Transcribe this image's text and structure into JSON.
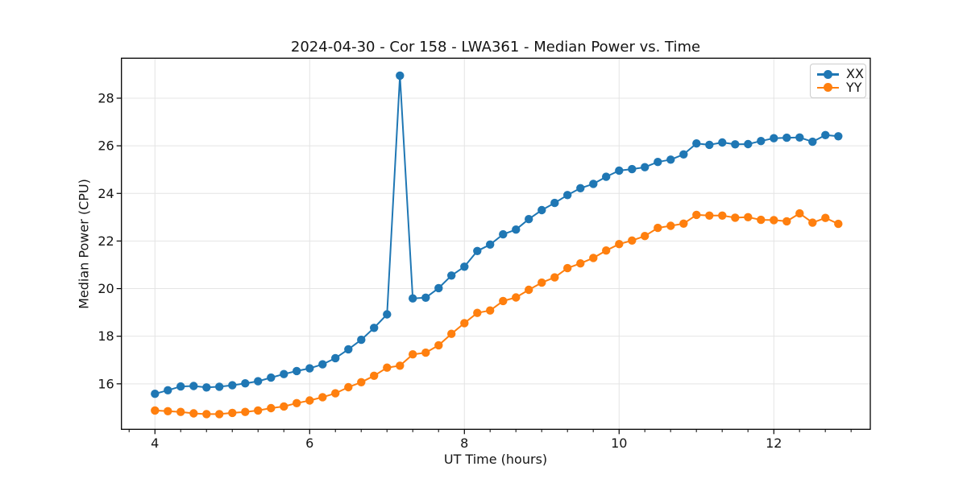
{
  "chart_data": {
    "type": "line",
    "title": "2024-04-30 - Cor 158 - LWA361 - Median Power vs. Time",
    "xlabel": "UT Time (hours)",
    "ylabel": "Median Power (CPU)",
    "xlim": [
      3.567,
      13.247
    ],
    "ylim": [
      14.09,
      29.68
    ],
    "xticks": [
      4,
      6,
      8,
      10,
      12
    ],
    "yticks": [
      16,
      18,
      20,
      22,
      24,
      26,
      28
    ],
    "x_minor_step": 0.3333,
    "grid": true,
    "grid_color": "#e4e4e4",
    "legend_position": "upper right",
    "x": [
      4,
      4.167,
      4.333,
      4.5,
      4.667,
      4.833,
      5,
      5.167,
      5.333,
      5.5,
      5.667,
      5.833,
      6,
      6.167,
      6.333,
      6.5,
      6.667,
      6.833,
      7,
      7.167,
      7.333,
      7.5,
      7.667,
      7.833,
      8,
      8.167,
      8.333,
      8.5,
      8.667,
      8.833,
      9,
      9.167,
      9.333,
      9.5,
      9.667,
      9.833,
      10,
      10.167,
      10.333,
      10.5,
      10.667,
      10.833,
      11,
      11.167,
      11.333,
      11.5,
      11.667,
      11.833,
      12,
      12.167,
      12.333,
      12.5,
      12.667,
      12.833
    ],
    "series": [
      {
        "name": "XX",
        "color": "#1f77b4",
        "values": [
          15.58,
          15.73,
          15.89,
          15.91,
          15.85,
          15.88,
          15.94,
          16.02,
          16.11,
          16.26,
          16.41,
          16.54,
          16.65,
          16.82,
          17.08,
          17.45,
          17.85,
          18.35,
          18.92,
          28.95,
          19.59,
          19.62,
          20.02,
          20.55,
          20.92,
          21.58,
          21.85,
          22.28,
          22.48,
          22.92,
          23.3,
          23.6,
          23.93,
          24.22,
          24.4,
          24.7,
          24.96,
          25.02,
          25.1,
          25.32,
          25.42,
          25.64,
          26.1,
          26.04,
          26.14,
          26.06,
          26.07,
          26.2,
          26.32,
          26.34,
          26.35,
          26.17,
          26.45,
          26.4
        ]
      },
      {
        "name": "YY",
        "color": "#ff7f0e",
        "values": [
          14.88,
          14.85,
          14.82,
          14.76,
          14.73,
          14.73,
          14.78,
          14.82,
          14.88,
          14.98,
          15.05,
          15.19,
          15.3,
          15.44,
          15.6,
          15.86,
          16.07,
          16.34,
          16.68,
          16.76,
          17.24,
          17.31,
          17.62,
          18.1,
          18.55,
          18.98,
          19.08,
          19.48,
          19.63,
          19.95,
          20.25,
          20.47,
          20.86,
          21.06,
          21.29,
          21.6,
          21.87,
          22.02,
          22.21,
          22.55,
          22.64,
          22.73,
          23.1,
          23.07,
          23.07,
          22.98,
          23.0,
          22.89,
          22.88,
          22.83,
          23.16,
          22.77,
          22.97,
          22.72
        ]
      }
    ]
  }
}
